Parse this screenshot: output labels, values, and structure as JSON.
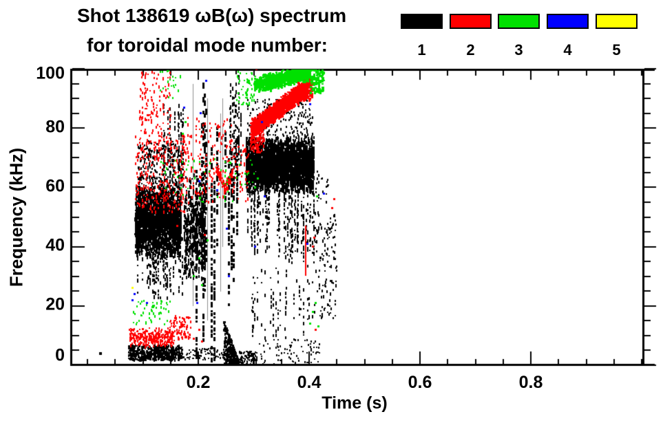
{
  "chart_data": {
    "type": "scatter",
    "title": "Shot 138619 ωB(ω) spectrum",
    "subtitle": "for toroidal mode number:",
    "xlabel": "Time (s)",
    "ylabel": "Frequency (kHz)",
    "xlim": [
      -0.03,
      1.0
    ],
    "ylim": [
      0,
      100
    ],
    "xticks_major": [
      0.2,
      0.4,
      0.6,
      0.8
    ],
    "xtick_labels": [
      "0.2",
      "0.4",
      "0.6",
      "0.8"
    ],
    "x_minor_step": 0.05,
    "yticks_major": [
      100,
      80,
      60,
      40,
      20,
      0
    ],
    "ytick_labels": [
      "100",
      "80",
      "60",
      "40",
      "20",
      "0"
    ],
    "y_minor_step": 5,
    "grid": false,
    "legend": {
      "position": "top-right",
      "entries": [
        {
          "label": "1",
          "mode": 1,
          "color": "#000000"
        },
        {
          "label": "2",
          "mode": 2,
          "color": "#ff0000"
        },
        {
          "label": "3",
          "mode": 3,
          "color": "#00e000"
        },
        {
          "label": "4",
          "mode": 4,
          "color": "#0000ff"
        },
        {
          "label": "5",
          "mode": 5,
          "color": "#ffff00"
        }
      ]
    },
    "clusters": [
      {
        "mode": 1,
        "type": "speckle",
        "t": [
          0.085,
          0.168
        ],
        "f": [
          36,
          62
        ],
        "n": 2300,
        "w": 2,
        "h": [
          2,
          7
        ],
        "prof": "core"
      },
      {
        "mode": 1,
        "type": "columns",
        "t": [
          0.088,
          0.175
        ],
        "f": [
          22,
          46
        ],
        "cols": 40,
        "seg": [
          2,
          6
        ],
        "fill": 0.45
      },
      {
        "mode": 1,
        "type": "speckle",
        "t": [
          0.09,
          0.17
        ],
        "f": [
          57,
          76
        ],
        "n": 240,
        "w": 2,
        "h": [
          2,
          5
        ]
      },
      {
        "mode": 1,
        "type": "columns",
        "t": [
          0.135,
          0.172
        ],
        "f": [
          58,
          90
        ],
        "cols": 14,
        "seg": [
          2,
          7
        ],
        "fill": 0.5
      },
      {
        "mode": 1,
        "type": "speckle",
        "t": [
          0.173,
          0.212
        ],
        "f": [
          28,
          66
        ],
        "n": 480,
        "w": 2,
        "h": [
          2,
          8
        ],
        "prof": "core"
      },
      {
        "mode": 1,
        "type": "vcol",
        "w": 3,
        "fill": 0.72,
        "seg": [
          3,
          9
        ],
        "cols": [
          [
            0.1955,
            2,
            66
          ],
          [
            0.2045,
            28,
            82
          ],
          [
            0.2075,
            8,
            97
          ],
          [
            0.21,
            25,
            92
          ],
          [
            0.213,
            35,
            88
          ],
          [
            0.2225,
            1,
            75
          ],
          [
            0.227,
            0,
            62
          ],
          [
            0.2325,
            40,
            80
          ],
          [
            0.247,
            52,
            80
          ],
          [
            0.2535,
            18,
            70
          ],
          [
            0.258,
            32,
            72
          ],
          [
            0.2625,
            28,
            66
          ],
          [
            0.268,
            40,
            76
          ]
        ]
      },
      {
        "mode": 1,
        "type": "vline",
        "w": 1,
        "alpha": 0.45,
        "lines": [
          [
            0.19,
            20,
            95
          ],
          [
            0.216,
            15,
            90
          ],
          [
            0.2395,
            25,
            85
          ],
          [
            0.244,
            40,
            90
          ]
        ]
      },
      {
        "mode": 1,
        "type": "speckle",
        "t": [
          0.073,
          0.17
        ],
        "f": [
          2,
          7
        ],
        "n": 620,
        "w": 2,
        "h": [
          2,
          4
        ]
      },
      {
        "mode": 1,
        "type": "speckle",
        "t": [
          0.17,
          0.248
        ],
        "f": [
          2,
          6
        ],
        "n": 70,
        "w": 2,
        "h": [
          2,
          3
        ]
      },
      {
        "mode": 1,
        "type": "wedge",
        "t": [
          0.245,
          0.272
        ],
        "f0": 0,
        "ftop": [
          16,
          2
        ],
        "n": 420,
        "w": 2,
        "h": [
          2,
          4
        ]
      },
      {
        "mode": 1,
        "type": "speckle",
        "t": [
          0.272,
          0.305
        ],
        "f": [
          0,
          5
        ],
        "n": 110,
        "w": 2,
        "h": [
          2,
          3
        ]
      },
      {
        "mode": 1,
        "type": "speckle",
        "t": [
          0.305,
          0.42
        ],
        "f": [
          0,
          9
        ],
        "n": 85,
        "w": 2,
        "h": [
          2,
          3
        ]
      },
      {
        "mode": 1,
        "type": "dots",
        "s": 4,
        "pts": [
          [
            0.021,
            4
          ]
        ]
      },
      {
        "mode": 1,
        "type": "speckle",
        "t": [
          0.285,
          0.408
        ],
        "f": [
          58,
          78
        ],
        "n": 3000,
        "w": 2,
        "h": [
          2,
          8
        ],
        "prof": "core"
      },
      {
        "mode": 1,
        "type": "columns",
        "t": [
          0.285,
          0.408
        ],
        "f": [
          34,
          62
        ],
        "cols": 52,
        "seg": [
          2,
          7
        ],
        "fill": 0.5
      },
      {
        "mode": 1,
        "type": "columns",
        "t": [
          0.295,
          0.405
        ],
        "f": [
          8,
          36
        ],
        "cols": 26,
        "seg": [
          2,
          6
        ],
        "fill": 0.35
      },
      {
        "mode": 1,
        "type": "speckle",
        "t": [
          0.285,
          0.405
        ],
        "f": [
          78,
          90
        ],
        "n": 200,
        "w": 2,
        "h": [
          2,
          4
        ]
      },
      {
        "mode": 1,
        "type": "columns",
        "t": [
          0.255,
          0.278
        ],
        "f": [
          58,
          100
        ],
        "cols": 12,
        "seg": [
          2,
          7
        ],
        "fill": 0.5
      },
      {
        "mode": 1,
        "type": "speckle",
        "t": [
          0.408,
          0.448
        ],
        "f": [
          16,
          52
        ],
        "n": 120,
        "w": 2,
        "h": [
          2,
          5
        ]
      },
      {
        "mode": 1,
        "type": "speckle",
        "t": [
          0.41,
          0.435
        ],
        "f": [
          55,
          66
        ],
        "n": 22,
        "w": 2,
        "h": [
          2,
          4
        ]
      },
      {
        "mode": 2,
        "type": "speckle",
        "t": [
          0.073,
          0.155
        ],
        "f": [
          6,
          13
        ],
        "n": 320,
        "w": 2,
        "h": [
          2,
          4
        ],
        "prof": "core"
      },
      {
        "mode": 2,
        "type": "speckle",
        "t": [
          0.148,
          0.185
        ],
        "f": [
          9,
          17
        ],
        "n": 85,
        "w": 2,
        "h": [
          2,
          4
        ]
      },
      {
        "mode": 2,
        "type": "speckle",
        "t": [
          0.085,
          0.18
        ],
        "f": [
          52,
          78
        ],
        "n": 290,
        "w": 2,
        "h": [
          2,
          5
        ]
      },
      {
        "mode": 2,
        "type": "speckle",
        "t": [
          0.092,
          0.15
        ],
        "f": [
          78,
          100
        ],
        "n": 115,
        "w": 2,
        "h": [
          2,
          5
        ]
      },
      {
        "mode": 2,
        "type": "speckle",
        "t": [
          0.18,
          0.26
        ],
        "f": [
          55,
          84
        ],
        "n": 140,
        "w": 2,
        "h": [
          2,
          5
        ]
      },
      {
        "mode": 2,
        "type": "band",
        "t": [
          0.232,
          0.247
        ],
        "fc": [
          67,
          60
        ],
        "thick": 4,
        "n": 60,
        "w": 2,
        "h": [
          2,
          4
        ]
      },
      {
        "mode": 2,
        "type": "band",
        "t": [
          0.247,
          0.262
        ],
        "fc": [
          60,
          66
        ],
        "thick": 4,
        "n": 60,
        "w": 2,
        "h": [
          2,
          4
        ]
      },
      {
        "mode": 2,
        "type": "band",
        "t": [
          0.295,
          0.395
        ],
        "fc": [
          80,
          94
        ],
        "thick": 7,
        "n": 1450,
        "w": 3,
        "h": [
          2,
          5
        ]
      },
      {
        "mode": 2,
        "type": "speckle",
        "t": [
          0.293,
          0.318
        ],
        "f": [
          72,
          82
        ],
        "n": 150,
        "w": 2,
        "h": [
          2,
          5
        ]
      },
      {
        "mode": 2,
        "type": "speckle",
        "t": [
          0.378,
          0.405
        ],
        "f": [
          90,
          99
        ],
        "n": 150,
        "w": 3,
        "h": [
          2,
          5
        ]
      },
      {
        "mode": 2,
        "type": "vline",
        "w": 2,
        "alpha": 1,
        "lines": [
          [
            0.392,
            30,
            47
          ]
        ]
      },
      {
        "mode": 2,
        "type": "speckle",
        "t": [
          0.26,
          0.29
        ],
        "f": [
          55,
          75
        ],
        "n": 55,
        "w": 2,
        "h": [
          2,
          4
        ]
      },
      {
        "mode": 2,
        "type": "dots",
        "s": 3,
        "pts": [
          [
            0.405,
            40
          ],
          [
            0.408,
            43
          ],
          [
            0.41,
            12
          ],
          [
            0.44,
            53
          ],
          [
            0.443,
            56
          ],
          [
            0.19,
            9
          ],
          [
            0.2,
            12
          ],
          [
            0.205,
            8
          ],
          [
            0.303,
            100
          ],
          [
            0.16,
            47
          ],
          [
            0.21,
            44
          ]
        ]
      },
      {
        "mode": 3,
        "type": "band",
        "t": [
          0.3,
          0.4
        ],
        "fc": [
          95,
          99
        ],
        "thick": 6,
        "n": 780,
        "w": 3,
        "h": [
          2,
          5
        ]
      },
      {
        "mode": 3,
        "type": "speckle",
        "t": [
          0.4,
          0.425
        ],
        "f": [
          92,
          100
        ],
        "n": 120,
        "w": 3,
        "h": [
          2,
          4
        ]
      },
      {
        "mode": 3,
        "type": "speckle",
        "t": [
          0.268,
          0.3
        ],
        "f": [
          88,
          100
        ],
        "n": 55,
        "w": 2,
        "h": [
          2,
          4
        ]
      },
      {
        "mode": 3,
        "type": "speckle",
        "t": [
          0.08,
          0.15
        ],
        "f": [
          14,
          22
        ],
        "n": 50,
        "w": 2,
        "h": [
          2,
          4
        ]
      },
      {
        "mode": 3,
        "type": "speckle",
        "t": [
          0.13,
          0.3
        ],
        "f": [
          55,
          70
        ],
        "n": 60,
        "w": 2,
        "h": [
          2,
          4
        ]
      },
      {
        "mode": 3,
        "type": "speckle",
        "t": [
          0.13,
          0.175
        ],
        "f": [
          90,
          100
        ],
        "n": 22,
        "w": 2,
        "h": [
          2,
          4
        ]
      },
      {
        "mode": 3,
        "type": "dots",
        "s": 3,
        "pts": [
          [
            0.19,
            30
          ],
          [
            0.2,
            36
          ],
          [
            0.205,
            27
          ],
          [
            0.215,
            42
          ],
          [
            0.4,
            14
          ],
          [
            0.405,
            18
          ],
          [
            0.41,
            21
          ],
          [
            0.415,
            13
          ],
          [
            0.413,
            57
          ],
          [
            0.3,
            60
          ],
          [
            0.305,
            63
          ],
          [
            0.17,
            78
          ],
          [
            0.175,
            82
          ]
        ]
      },
      {
        "mode": 4,
        "type": "dots",
        "s": 3,
        "pts": [
          [
            0.079,
            22
          ],
          [
            0.083,
            24
          ],
          [
            0.105,
            21
          ],
          [
            0.173,
            87
          ],
          [
            0.196,
            21
          ],
          [
            0.2,
            62
          ],
          [
            0.203,
            85
          ],
          [
            0.212,
            96
          ],
          [
            0.232,
            59
          ],
          [
            0.25,
            46
          ],
          [
            0.253,
            30
          ],
          [
            0.3,
            40
          ],
          [
            0.313,
            82
          ],
          [
            0.318,
            57
          ],
          [
            0.395,
            41
          ],
          [
            0.4,
            88
          ],
          [
            0.425,
            58
          ]
        ]
      },
      {
        "mode": 5,
        "type": "dots",
        "s": 3,
        "pts": [
          [
            0.079,
            26
          ]
        ]
      }
    ]
  }
}
